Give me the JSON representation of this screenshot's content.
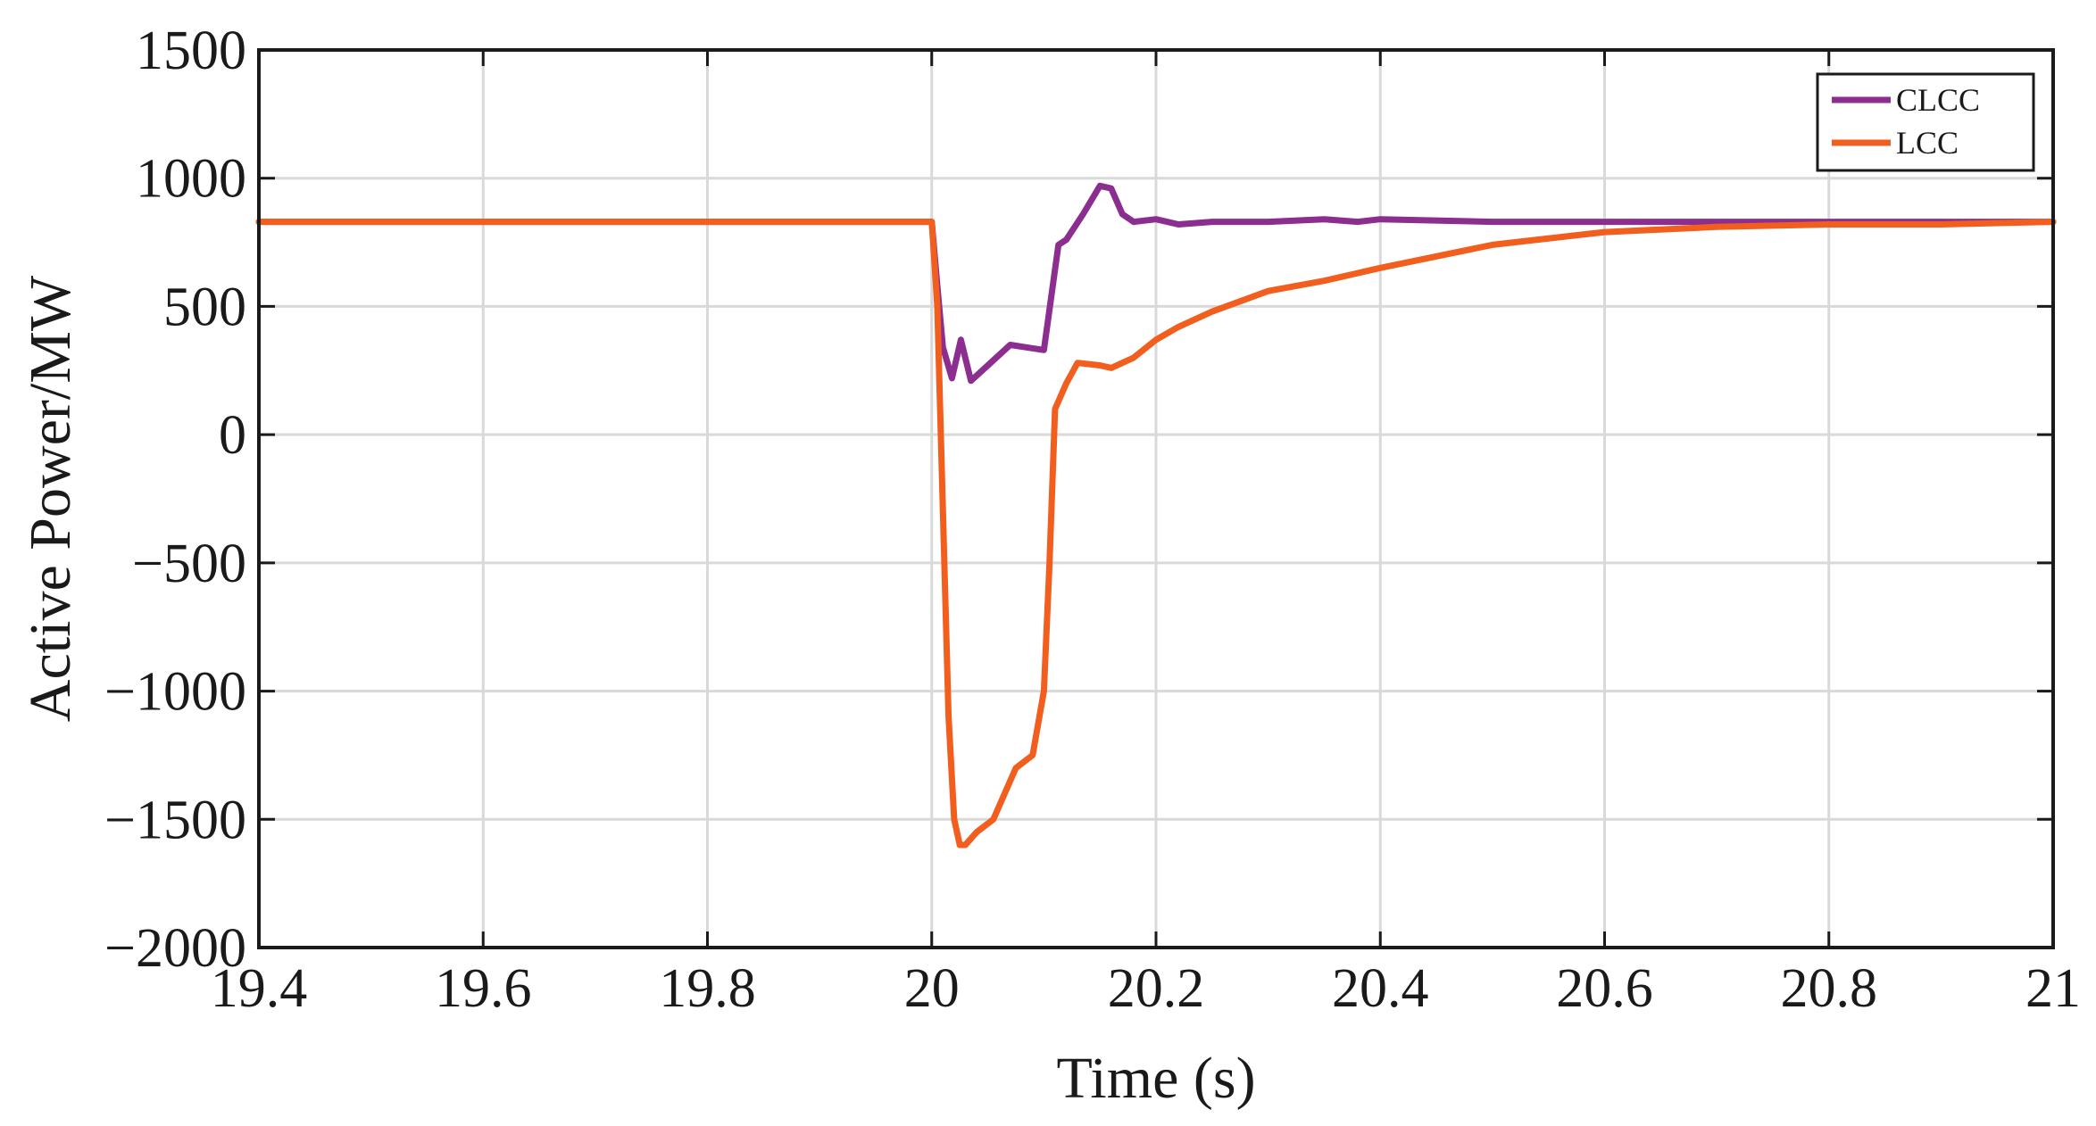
{
  "chart_data": {
    "type": "line",
    "title": "",
    "xlabel": "Time (s)",
    "ylabel": "Active Power/MW",
    "xlim": [
      19.4,
      21
    ],
    "ylim": [
      -2000,
      1500
    ],
    "xticks": [
      19.4,
      19.6,
      19.8,
      20,
      20.2,
      20.4,
      20.6,
      20.8,
      21
    ],
    "xtick_labels": [
      "19.4",
      "19.6",
      "19.8",
      "20",
      "20.2",
      "20.4",
      "20.6",
      "20.8",
      "21"
    ],
    "yticks": [
      -2000,
      -1500,
      -1000,
      -500,
      0,
      500,
      1000,
      1500
    ],
    "ytick_labels": [
      "−2000",
      "−1500",
      "−1000",
      "−500",
      "0",
      "500",
      "1000",
      "1500"
    ],
    "grid": true,
    "legend": "top-right",
    "series": [
      {
        "name": "CLCC",
        "color": "#8B2E8F",
        "x": [
          19.4,
          19.6,
          19.8,
          20.0,
          20.005,
          20.01,
          20.018,
          20.026,
          20.035,
          20.05,
          20.07,
          20.085,
          20.1,
          20.113,
          20.12,
          20.135,
          20.15,
          20.16,
          20.17,
          20.18,
          20.2,
          20.22,
          20.25,
          20.3,
          20.35,
          20.38,
          20.4,
          20.5,
          20.6,
          20.8,
          21.0
        ],
        "y": [
          830,
          830,
          830,
          830,
          580,
          340,
          220,
          370,
          210,
          270,
          350,
          340,
          330,
          740,
          760,
          860,
          970,
          960,
          860,
          830,
          840,
          820,
          830,
          830,
          840,
          830,
          840,
          830,
          830,
          830,
          830
        ]
      },
      {
        "name": "LCC",
        "color": "#F25E1D",
        "x": [
          19.4,
          19.6,
          19.8,
          20.0,
          20.005,
          20.01,
          20.015,
          20.02,
          20.025,
          20.03,
          20.04,
          20.055,
          20.065,
          20.075,
          20.09,
          20.1,
          20.105,
          20.11,
          20.12,
          20.13,
          20.15,
          20.16,
          20.17,
          20.18,
          20.2,
          20.22,
          20.25,
          20.3,
          20.35,
          20.4,
          20.5,
          20.6,
          20.7,
          20.8,
          20.9,
          21.0
        ],
        "y": [
          830,
          830,
          830,
          830,
          500,
          -300,
          -1100,
          -1500,
          -1600,
          -1600,
          -1550,
          -1500,
          -1400,
          -1300,
          -1250,
          -1000,
          -500,
          100,
          200,
          280,
          270,
          260,
          280,
          300,
          370,
          420,
          480,
          560,
          600,
          650,
          740,
          790,
          810,
          820,
          820,
          830
        ]
      }
    ]
  }
}
